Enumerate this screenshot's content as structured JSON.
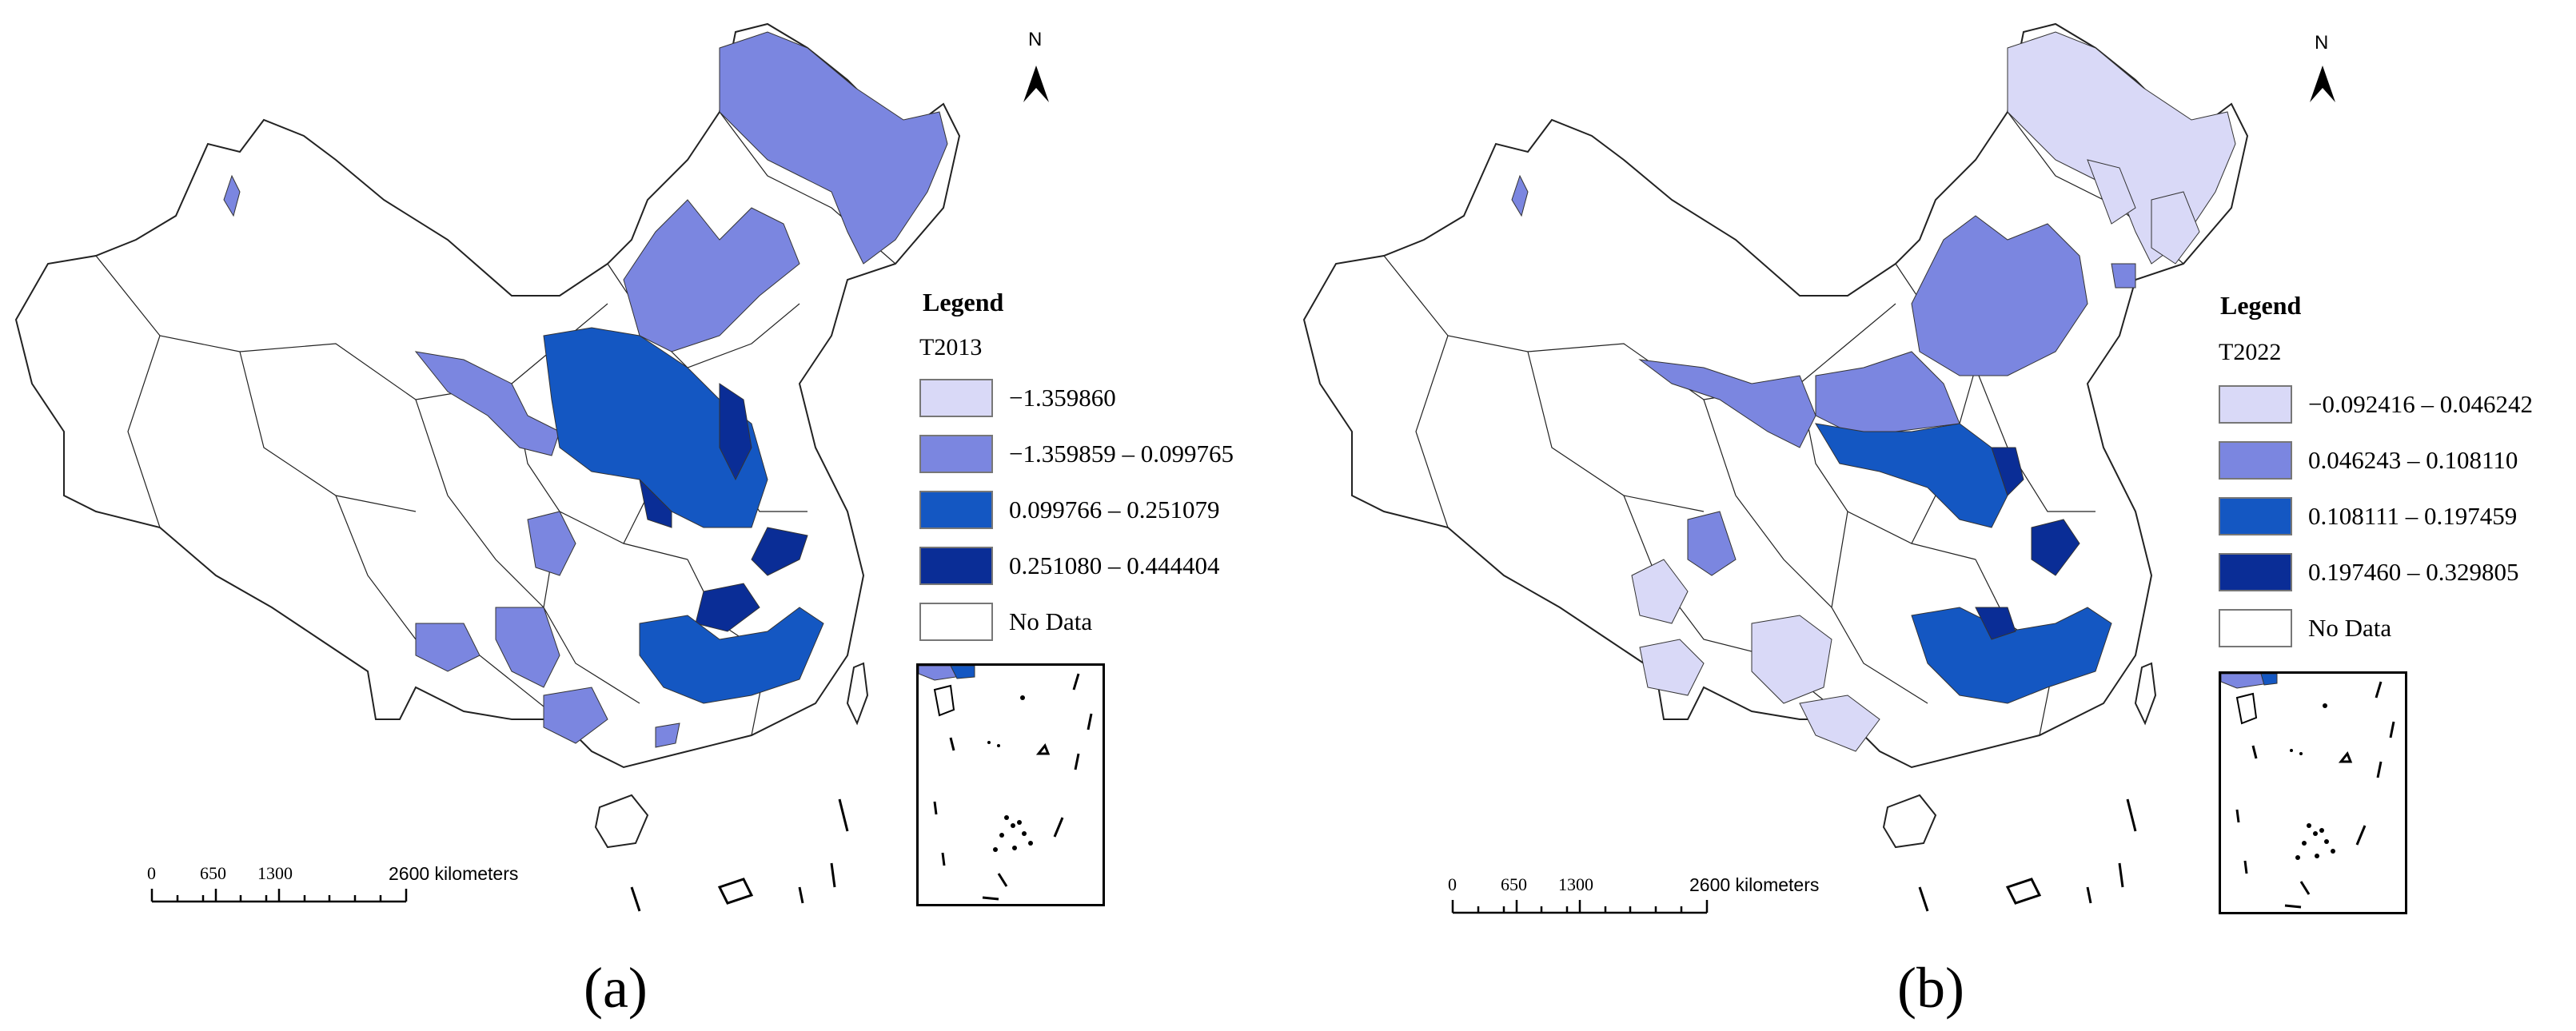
{
  "panels": [
    {
      "id": "a",
      "caption": "(a)",
      "north": "N",
      "legend": {
        "title": "Legend",
        "field": "T2013",
        "classes": [
          {
            "label": "−1.359860",
            "color": "#d9d9f7"
          },
          {
            "label": "−1.359859 – 0.099765",
            "color": "#7b86e0"
          },
          {
            "label": "0.099766 – 0.251079",
            "color": "#1457c2"
          },
          {
            "label": "0.251080 – 0.444404",
            "color": "#0a2d96"
          },
          {
            "label": "No Data",
            "color": "#ffffff"
          }
        ]
      },
      "scale": {
        "ticks": [
          "0",
          "650",
          "1300",
          "2600 kilometers"
        ]
      }
    },
    {
      "id": "b",
      "caption": "(b)",
      "north": "N",
      "legend": {
        "title": "Legend",
        "field": "T2022",
        "classes": [
          {
            "label": "−0.092416 – 0.046242",
            "color": "#d9d9f7"
          },
          {
            "label": "0.046243 – 0.108110",
            "color": "#7b86e0"
          },
          {
            "label": "0.108111 – 0.197459",
            "color": "#1457c2"
          },
          {
            "label": "0.197460 – 0.329805",
            "color": "#0a2d96"
          },
          {
            "label": "No Data",
            "color": "#ffffff"
          }
        ]
      },
      "scale": {
        "ticks": [
          "0",
          "650",
          "1300",
          "2600 kilometers"
        ]
      }
    }
  ]
}
